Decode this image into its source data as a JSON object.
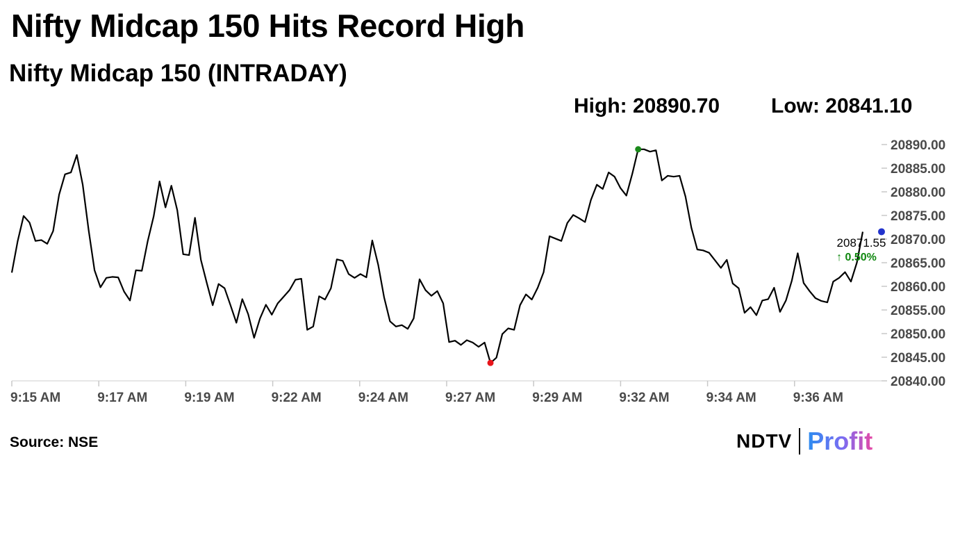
{
  "headline": "Nifty Midcap 150 Hits Record High",
  "stats": {
    "high": "High: 20890.70",
    "low": "Low: 20841.10"
  },
  "source": "Source: NSE",
  "brand": {
    "left": "NDTV",
    "right": "Profit"
  },
  "chart_data": {
    "type": "line",
    "title": "Nifty Midcap 150 (INTRADAY)",
    "x_ticks": [
      "9:15 AM",
      "9:17 AM",
      "9:19 AM",
      "9:22 AM",
      "9:24 AM",
      "9:27 AM",
      "9:29 AM",
      "9:32 AM",
      "9:34 AM",
      "9:36 AM"
    ],
    "y_ticks": [
      "20890.00",
      "20885.00",
      "20880.00",
      "20875.00",
      "20870.00",
      "20865.00",
      "20860.00",
      "20855.00",
      "20850.00",
      "20845.00",
      "20840.00"
    ],
    "ylim": [
      20840,
      20890
    ],
    "grid": false,
    "series": [
      {
        "color": "#000000",
        "values": [
          20862.9,
          20869.6,
          20874.9,
          20873.5,
          20869.6,
          20869.8,
          20869.0,
          20871.7,
          20879.4,
          20883.7,
          20884.1,
          20887.8,
          20881.5,
          20871.9,
          20863.4,
          20859.8,
          20861.8,
          20862.0,
          20861.9,
          20858.9,
          20857.0,
          20863.4,
          20863.3,
          20869.6,
          20874.8,
          20882.2,
          20876.7,
          20881.3,
          20876.1,
          20866.8,
          20866.6,
          20874.5,
          20865.6,
          20860.7,
          20856.0,
          20860.5,
          20859.6,
          20856.0,
          20852.3,
          20857.3,
          20854.1,
          20849.1,
          20853.2,
          20856.1,
          20854.0,
          20856.4,
          20857.8,
          20859.2,
          20861.4,
          20861.6,
          20850.8,
          20851.5,
          20857.9,
          20857.2,
          20859.6,
          20865.7,
          20865.4,
          20862.6,
          20861.8,
          20862.6,
          20861.9,
          20869.7,
          20864.6,
          20857.7,
          20852.6,
          20851.5,
          20851.8,
          20851.0,
          20853.2,
          20861.5,
          20859.2,
          20858.0,
          20859.0,
          20856.4,
          20848.2,
          20848.5,
          20847.6,
          20848.6,
          20848.1,
          20847.2,
          20848.1,
          20843.8,
          20844.9,
          20849.9,
          20851.1,
          20850.8,
          20856.0,
          20858.3,
          20857.2,
          20859.7,
          20863.0,
          20870.6,
          20870.1,
          20869.6,
          20873.4,
          20875.1,
          20874.4,
          20873.6,
          20878.3,
          20881.5,
          20880.6,
          20884.1,
          20883.2,
          20880.8,
          20879.2,
          20883.8,
          20889.0,
          20889.0,
          20888.5,
          20888.8,
          20882.4,
          20883.4,
          20883.2,
          20883.4,
          20879.0,
          20872.4,
          20867.8,
          20867.6,
          20867.1,
          20865.5,
          20863.9,
          20865.6,
          20860.6,
          20859.6,
          20854.4,
          20855.6,
          20853.9,
          20857.0,
          20857.3,
          20859.7,
          20854.6,
          20857.0,
          20861.2,
          20867.0,
          20860.7,
          20859.0,
          20857.5,
          20856.9,
          20856.6,
          20861.0,
          20861.8,
          20863.0,
          20861.0,
          20865.0,
          20871.55
        ]
      }
    ],
    "markers": [
      {
        "label": "high",
        "color": "#1a8a1a"
      },
      {
        "label": "low",
        "color": "#e8141a"
      },
      {
        "label": "last",
        "color": "#2233cc"
      }
    ],
    "last_value": "20871.55",
    "change_pct": "↑ 0.50%",
    "change_color": "#118811"
  }
}
